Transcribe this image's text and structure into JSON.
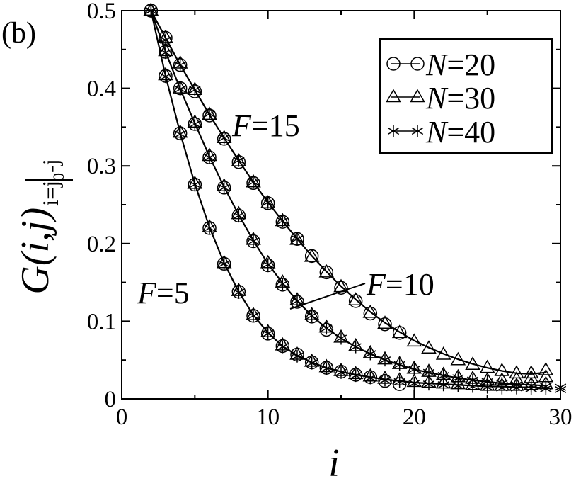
{
  "chart_data": {
    "type": "line",
    "panel_label": "(b)",
    "xlabel": "i",
    "ylabel": {
      "main": "G(i,j)",
      "subscript": "i=j",
      "subscript_sub": "0",
      "subscript_tail": "-j"
    },
    "xlim": [
      0,
      30
    ],
    "ylim": [
      0,
      0.5
    ],
    "x_ticks": [
      0,
      10,
      20,
      30
    ],
    "y_ticks": [
      0,
      0.1,
      0.2,
      0.3,
      0.4,
      0.5
    ],
    "x_tick_labels": [
      "0",
      "10",
      "20",
      "30"
    ],
    "y_tick_labels": [
      "0",
      "0.1",
      "0.2",
      "0.3",
      "0.4",
      "0.5"
    ],
    "grid": false,
    "legend_position": "top-right",
    "legend": [
      {
        "name": "N=20",
        "var": "N",
        "eq": "=20",
        "marker": "circle"
      },
      {
        "name": "N=30",
        "var": "N",
        "eq": "=30",
        "marker": "triangle"
      },
      {
        "name": "N=40",
        "var": "N",
        "eq": "=40",
        "marker": "star"
      }
    ],
    "annotations": [
      {
        "var": "F",
        "eq": "=15"
      },
      {
        "var": "F",
        "eq": "=10"
      },
      {
        "var": "F",
        "eq": "=5"
      }
    ],
    "groups": [
      {
        "F": 15,
        "fit": [
          [
            2,
            0.5
          ],
          [
            3,
            0.465
          ],
          [
            4,
            0.43
          ],
          [
            5,
            0.398
          ],
          [
            6,
            0.366
          ],
          [
            7,
            0.336
          ],
          [
            8,
            0.307
          ],
          [
            9,
            0.279
          ],
          [
            10,
            0.253
          ],
          [
            11,
            0.229
          ],
          [
            12,
            0.206
          ],
          [
            13,
            0.184
          ],
          [
            14,
            0.164
          ],
          [
            15,
            0.145
          ],
          [
            16,
            0.128
          ],
          [
            17,
            0.112
          ],
          [
            18,
            0.098
          ],
          [
            19,
            0.086
          ],
          [
            20,
            0.075
          ],
          [
            21,
            0.066
          ],
          [
            22,
            0.058
          ],
          [
            23,
            0.051
          ],
          [
            24,
            0.045
          ],
          [
            25,
            0.04
          ],
          [
            26,
            0.036
          ],
          [
            27,
            0.033
          ],
          [
            28,
            0.032
          ],
          [
            29,
            0.034
          ]
        ],
        "series": [
          {
            "name": "N=20",
            "marker": "circle",
            "x": [
              2,
              3,
              4,
              5,
              6,
              7,
              8,
              9,
              10,
              11,
              12,
              13,
              14,
              15,
              16,
              17,
              18,
              19
            ],
            "y": [
              0.5,
              0.465,
              0.43,
              0.396,
              0.365,
              0.335,
              0.305,
              0.278,
              0.252,
              0.228,
              0.206,
              0.184,
              0.163,
              0.143,
              0.126,
              0.11,
              0.096,
              0.085
            ]
          },
          {
            "name": "N=30",
            "marker": "triangle",
            "x": [
              2,
              3,
              4,
              5,
              6,
              7,
              8,
              9,
              10,
              11,
              12,
              13,
              14,
              15,
              16,
              17,
              18,
              19,
              20,
              21,
              22,
              23,
              24,
              25,
              26,
              27,
              28,
              29
            ],
            "y": [
              0.5,
              0.465,
              0.432,
              0.398,
              0.366,
              0.336,
              0.306,
              0.279,
              0.252,
              0.229,
              0.205,
              0.183,
              0.163,
              0.144,
              0.127,
              0.111,
              0.097,
              0.085,
              0.074,
              0.065,
              0.057,
              0.05,
              0.044,
              0.04,
              0.036,
              0.033,
              0.033,
              0.037
            ]
          },
          {
            "name": "N=40",
            "marker": "star",
            "x": [
              2,
              3,
              4,
              5,
              6,
              7,
              8,
              9,
              10,
              11,
              12
            ],
            "y": [
              0.5,
              0.462,
              0.43,
              0.398,
              0.367,
              0.336,
              0.307,
              0.279,
              0.253,
              0.229,
              0.206
            ]
          }
        ]
      },
      {
        "F": 10,
        "fit": [
          [
            2,
            0.5
          ],
          [
            3,
            0.447
          ],
          [
            4,
            0.399
          ],
          [
            5,
            0.355
          ],
          [
            6,
            0.312
          ],
          [
            7,
            0.273
          ],
          [
            8,
            0.237
          ],
          [
            9,
            0.204
          ],
          [
            10,
            0.174
          ],
          [
            11,
            0.149
          ],
          [
            12,
            0.126
          ],
          [
            13,
            0.107
          ],
          [
            14,
            0.091
          ],
          [
            15,
            0.078
          ],
          [
            16,
            0.067
          ],
          [
            17,
            0.058
          ],
          [
            18,
            0.05
          ],
          [
            19,
            0.044
          ],
          [
            20,
            0.038
          ],
          [
            21,
            0.034
          ],
          [
            22,
            0.03
          ],
          [
            23,
            0.027
          ],
          [
            24,
            0.024
          ],
          [
            25,
            0.022
          ],
          [
            26,
            0.02
          ],
          [
            27,
            0.019
          ],
          [
            28,
            0.018
          ],
          [
            29,
            0.017
          ]
        ],
        "series": [
          {
            "name": "N=20",
            "marker": "circle",
            "x": [
              2,
              3,
              4,
              5,
              6,
              7,
              8,
              9,
              10,
              11,
              12,
              13,
              14
            ],
            "y": [
              0.5,
              0.447,
              0.4,
              0.354,
              0.311,
              0.272,
              0.236,
              0.203,
              0.172,
              0.147,
              0.125,
              0.106,
              0.089
            ]
          },
          {
            "name": "N=30",
            "marker": "triangle",
            "x": [
              2,
              3,
              4,
              5,
              6,
              7,
              8,
              9,
              10,
              11,
              12,
              13,
              14,
              15,
              16,
              17,
              18,
              19,
              20,
              21,
              22,
              23,
              24,
              25,
              26,
              27,
              28,
              29
            ],
            "y": [
              0.5,
              0.448,
              0.4,
              0.356,
              0.313,
              0.274,
              0.238,
              0.205,
              0.175,
              0.15,
              0.127,
              0.108,
              0.092,
              0.079,
              0.068,
              0.059,
              0.051,
              0.045,
              0.039,
              0.035,
              0.031,
              0.028,
              0.026,
              0.024,
              0.024,
              0.025,
              0.027,
              0.028
            ]
          },
          {
            "name": "N=40",
            "marker": "star",
            "x": [
              2,
              3,
              4,
              5,
              6,
              7,
              8,
              9,
              10,
              11,
              12,
              13,
              14,
              15,
              16,
              17,
              18,
              19,
              20,
              21,
              22,
              23,
              24,
              25,
              26,
              27,
              28,
              29,
              30
            ],
            "y": [
              0.5,
              0.446,
              0.399,
              0.354,
              0.311,
              0.272,
              0.236,
              0.203,
              0.173,
              0.148,
              0.126,
              0.107,
              0.091,
              0.078,
              0.067,
              0.058,
              0.05,
              0.044,
              0.038,
              0.034,
              0.03,
              0.027,
              0.024,
              0.022,
              0.02,
              0.018,
              0.017,
              0.016,
              0.015
            ]
          }
        ]
      },
      {
        "F": 5,
        "fit": [
          [
            2,
            0.5
          ],
          [
            3,
            0.416
          ],
          [
            4,
            0.342
          ],
          [
            5,
            0.277
          ],
          [
            6,
            0.221
          ],
          [
            7,
            0.175
          ],
          [
            8,
            0.138
          ],
          [
            9,
            0.108
          ],
          [
            10,
            0.085
          ],
          [
            11,
            0.068
          ],
          [
            12,
            0.056
          ],
          [
            13,
            0.047
          ],
          [
            14,
            0.04
          ],
          [
            15,
            0.035
          ],
          [
            16,
            0.031
          ],
          [
            17,
            0.028
          ],
          [
            18,
            0.025
          ],
          [
            19,
            0.023
          ],
          [
            20,
            0.021
          ],
          [
            21,
            0.02
          ],
          [
            22,
            0.019
          ],
          [
            23,
            0.018
          ],
          [
            24,
            0.017
          ],
          [
            25,
            0.016
          ],
          [
            26,
            0.016
          ],
          [
            27,
            0.015
          ],
          [
            28,
            0.015
          ],
          [
            29,
            0.014
          ]
        ],
        "series": [
          {
            "name": "N=20",
            "marker": "circle",
            "x": [
              2,
              3,
              4,
              5,
              6,
              7,
              8,
              9,
              10,
              11,
              12,
              13,
              14,
              15,
              16,
              17,
              18,
              19
            ],
            "y": [
              0.5,
              0.416,
              0.342,
              0.276,
              0.22,
              0.174,
              0.138,
              0.107,
              0.084,
              0.068,
              0.057,
              0.047,
              0.04,
              0.035,
              0.031,
              0.028,
              0.023,
              0.019
            ]
          },
          {
            "name": "N=30",
            "marker": "triangle",
            "x": [
              2,
              3,
              4,
              5,
              6,
              7,
              8,
              9,
              10,
              11,
              12,
              13,
              14,
              15,
              16,
              17,
              18,
              19,
              20,
              21,
              22,
              23,
              24,
              25,
              26,
              27,
              28,
              29
            ],
            "y": [
              0.5,
              0.417,
              0.343,
              0.277,
              0.221,
              0.175,
              0.139,
              0.108,
              0.086,
              0.069,
              0.057,
              0.048,
              0.041,
              0.036,
              0.032,
              0.029,
              0.026,
              0.024,
              0.022,
              0.021,
              0.02,
              0.019,
              0.018,
              0.017,
              0.017,
              0.017,
              0.018,
              0.019
            ]
          },
          {
            "name": "N=40",
            "marker": "star",
            "x": [
              2,
              3,
              4,
              5,
              6,
              7,
              8,
              9,
              10,
              11,
              12,
              13,
              14,
              15,
              16,
              17,
              18,
              19,
              20,
              21,
              22,
              23,
              24,
              25,
              26,
              27,
              28,
              29,
              30
            ],
            "y": [
              0.5,
              0.415,
              0.341,
              0.276,
              0.22,
              0.174,
              0.137,
              0.107,
              0.084,
              0.067,
              0.055,
              0.046,
              0.039,
              0.034,
              0.03,
              0.027,
              0.024,
              0.022,
              0.02,
              0.019,
              0.018,
              0.017,
              0.016,
              0.015,
              0.014,
              0.014,
              0.013,
              0.013,
              0.012
            ]
          }
        ]
      }
    ]
  }
}
